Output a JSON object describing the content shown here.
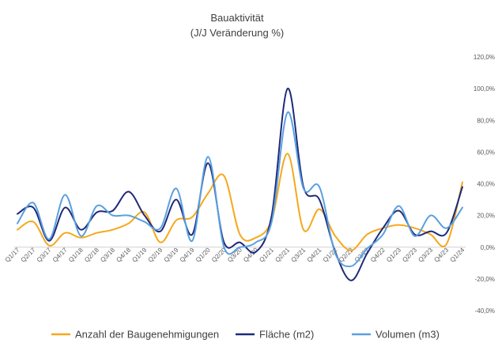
{
  "chart_data": {
    "type": "line",
    "title": "Bauaktivität",
    "subtitle": "(J/J Veränderung %)",
    "categories": [
      "Q1/17",
      "Q2/17",
      "Q3/17",
      "Q4/17",
      "Q1/18",
      "Q2/18",
      "Q3/18",
      "Q4/18",
      "Q1/19",
      "Q2/19",
      "Q3/19",
      "Q4/19",
      "Q1/20",
      "Q2/20",
      "Q3/20",
      "Q4/20",
      "Q1/21",
      "Q2/21",
      "Q3/21",
      "Q4/21",
      "Q1/22",
      "Q2/22",
      "Q3/22",
      "Q4/22",
      "Q1/23",
      "Q2/23",
      "Q3/23",
      "Q4/23",
      "Q1/24"
    ],
    "y_ticks": [
      -40,
      -20,
      0,
      20,
      40,
      60,
      80,
      100,
      120
    ],
    "y_tick_labels": [
      "-40,0%",
      "-20,0%",
      "0,0%",
      "20,0%",
      "40,0%",
      "60,0%",
      "80,0%",
      "100,0%",
      "120,0%"
    ],
    "ylim": [
      -40,
      120
    ],
    "y_axis_position": "right",
    "grid": false,
    "legend_position": "bottom",
    "series": [
      {
        "name": "Anzahl der Baugenehmigungen",
        "color": "#f5a81c",
        "values": [
          11,
          16,
          1,
          9,
          6,
          9,
          11,
          15,
          22,
          3,
          17,
          19,
          34,
          45,
          8,
          6,
          17,
          59,
          11,
          24,
          7,
          -2,
          8,
          12,
          14,
          12,
          8,
          2,
          41
        ]
      },
      {
        "name": "Fläche (m2)",
        "color": "#1f2a7a",
        "values": [
          21,
          25,
          4,
          25,
          11,
          22,
          23,
          35,
          20,
          10,
          30,
          8,
          53,
          3,
          3,
          -3,
          20,
          100,
          38,
          30,
          -3,
          -21,
          -4,
          12,
          23,
          8,
          10,
          9,
          38
        ]
      },
      {
        "name": "Volumen (m3)",
        "color": "#5aa0e0",
        "values": [
          15,
          28,
          5,
          33,
          7,
          26,
          20,
          20,
          16,
          12,
          37,
          4,
          57,
          0,
          0,
          3,
          16,
          85,
          37,
          38,
          -4,
          -12,
          -1,
          8,
          26,
          7,
          20,
          12,
          25
        ]
      }
    ]
  }
}
